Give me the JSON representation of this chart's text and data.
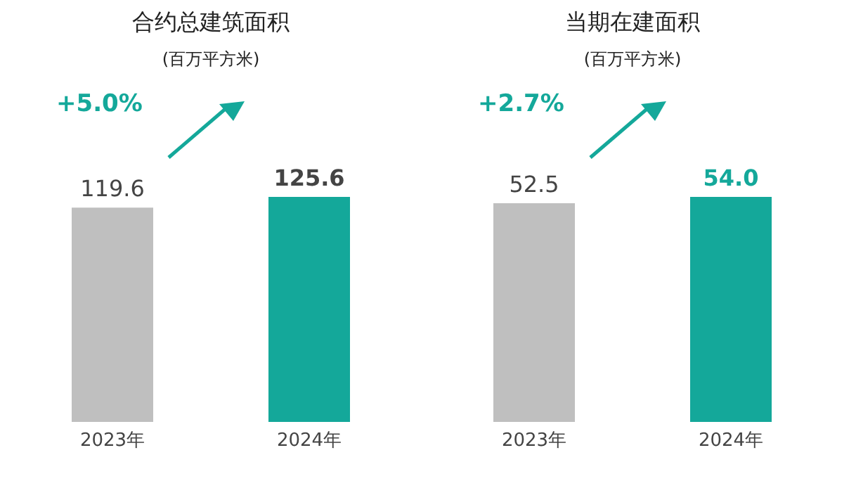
{
  "chart_data": [
    {
      "type": "bar",
      "title": "合约总建筑面积",
      "subtitle": "(百万平方米)",
      "categories": [
        "2023年",
        "2024年"
      ],
      "values": [
        119.6,
        125.6
      ],
      "colors": [
        "#bfbfbf",
        "#14a89a"
      ],
      "data_labels": true,
      "annotations": [
        "+5.0%"
      ],
      "grid": false,
      "legend": false
    },
    {
      "type": "bar",
      "title": "当期在建面积",
      "subtitle": "(百万平方米)",
      "categories": [
        "2023年",
        "2024年"
      ],
      "values": [
        52.5,
        54.0
      ],
      "colors": [
        "#bfbfbf",
        "#14a89a"
      ],
      "value_labels": [
        "52.5",
        "54.0"
      ],
      "annotations": [
        "+2.7%"
      ],
      "grid": false,
      "legend": false
    }
  ]
}
